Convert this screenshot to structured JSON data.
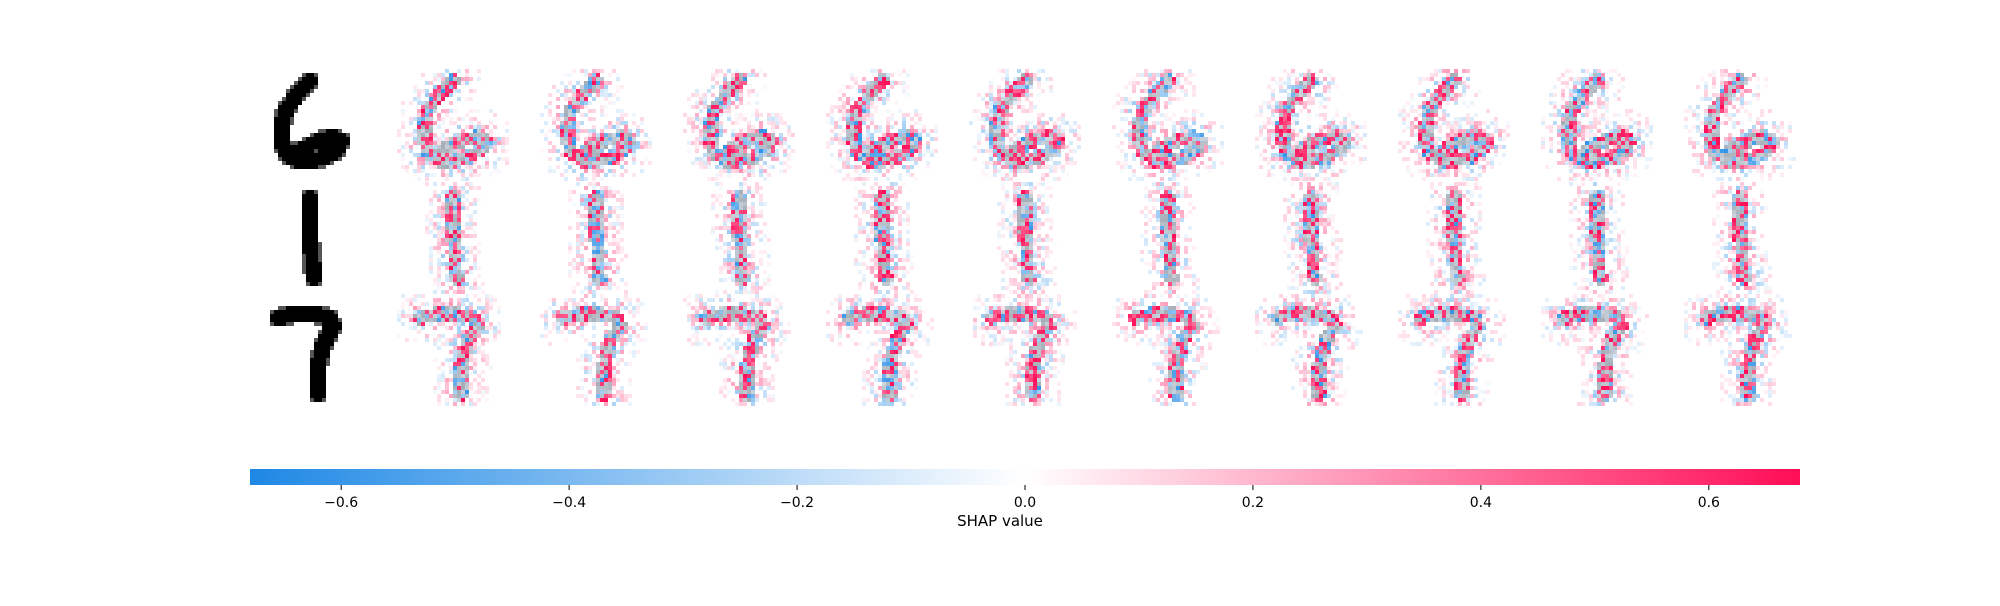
{
  "chart_data": {
    "type": "heatmap",
    "title": "",
    "subtitle": "",
    "description_digits": [
      6,
      1,
      7
    ],
    "rows": [
      {
        "input_digit": 6,
        "explanation_count": 10
      },
      {
        "input_digit": 1,
        "explanation_count": 10
      },
      {
        "input_digit": 7,
        "explanation_count": 10
      }
    ],
    "colorbar": {
      "label": "SHAP value",
      "range": [
        -0.68,
        0.68
      ],
      "ticks": [
        -0.6,
        -0.4,
        -0.2,
        0.0,
        0.2,
        0.4,
        0.6
      ],
      "tick_labels": [
        "−0.6",
        "−0.4",
        "−0.2",
        "0.0",
        "0.2",
        "0.4",
        "0.6"
      ],
      "negative_color": "#1E88E5",
      "zero_color": "#FFFFFF",
      "positive_color": "#FF0D57"
    },
    "grid": false,
    "legend": "bottom-colorbar"
  },
  "colors": {
    "digit": "#000000",
    "positive": "#FF0D57",
    "negative": "#1E88E5",
    "background": "#FFFFFF"
  }
}
